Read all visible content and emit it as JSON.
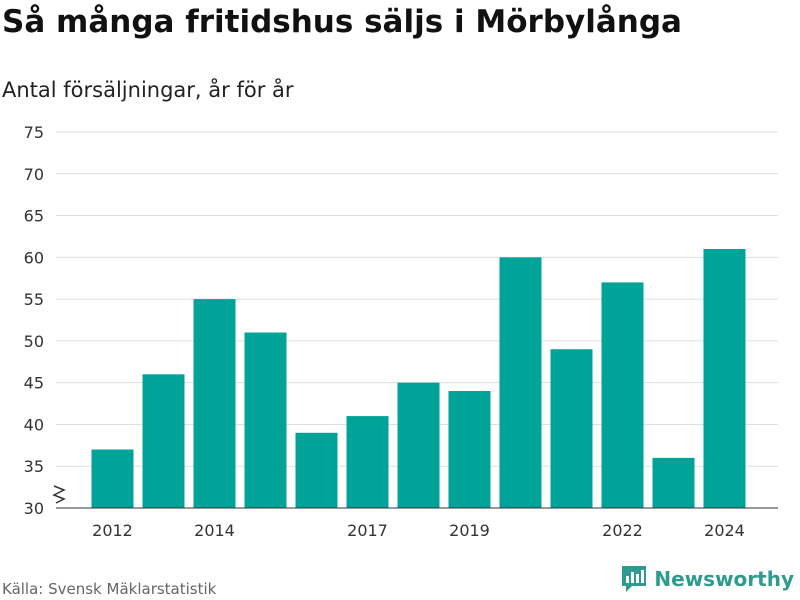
{
  "title": "Så många fritidshus säljs i Mörbylånga",
  "subtitle": "Antal försäljningar, år för år",
  "source": "Källa: Svensk Mäklarstatistik",
  "brand": "Newsworthy",
  "colors": {
    "bar": "#00a398",
    "grid": "#dddddd",
    "brand": "#2f9a8f"
  },
  "icons": {
    "brand_logo": "bar-chart-speech-bubble-icon",
    "axis_break": "zigzag-axis-break-icon"
  },
  "chart_data": {
    "type": "bar",
    "categories": [
      "2012",
      "2013",
      "2014",
      "2015",
      "2016",
      "2017",
      "2018",
      "2019",
      "2020",
      "2021",
      "2022",
      "2023",
      "2024"
    ],
    "values": [
      37,
      46,
      55,
      51,
      39,
      41,
      45,
      44,
      60,
      49,
      57,
      36,
      61
    ],
    "x_tick_labels": [
      "2012",
      "2014",
      "2017",
      "2019",
      "2022",
      "2024"
    ],
    "y_ticks": [
      30,
      35,
      40,
      45,
      50,
      55,
      60,
      65,
      70,
      75
    ],
    "ylim": [
      30,
      75
    ],
    "grid": true,
    "legend": "none"
  }
}
